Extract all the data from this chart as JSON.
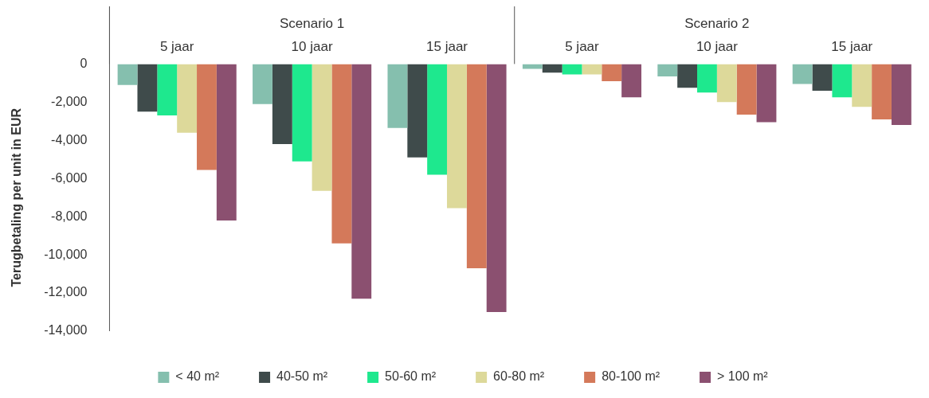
{
  "chart_data": {
    "type": "bar",
    "ylabel": "Terugbetaling per unit in EUR",
    "categories": [
      "5 jaar",
      "10 jaar",
      "15 jaar",
      "5 jaar",
      "10 jaar",
      "15 jaar"
    ],
    "annotations": [
      "Scenario 1",
      "Scenario 2"
    ],
    "series": [
      {
        "name": "< 40 m²",
        "color": "#85bfae",
        "values": [
          -1100,
          -2100,
          -3350,
          -250,
          -650,
          -1050
        ]
      },
      {
        "name": "40-50 m²",
        "color": "#3f4b4b",
        "values": [
          -2500,
          -4200,
          -4900,
          -450,
          -1250,
          -1400
        ]
      },
      {
        "name": "50-60 m²",
        "color": "#1ee88e",
        "values": [
          -2700,
          -5100,
          -5800,
          -550,
          -1500,
          -1750
        ]
      },
      {
        "name": "60-80 m²",
        "color": "#ddd99a",
        "values": [
          -3600,
          -6650,
          -7550,
          -550,
          -2000,
          -2250
        ]
      },
      {
        "name": "80-100 m²",
        "color": "#d4795a",
        "values": [
          -5550,
          -9400,
          -10700,
          -900,
          -2650,
          -2900
        ]
      },
      {
        "name": "> 100 m²",
        "color": "#8b5070",
        "values": [
          -8200,
          -12300,
          -13000,
          -1750,
          -3050,
          -3200
        ]
      }
    ],
    "ylim": [
      -14000,
      0
    ],
    "yticks": [
      0,
      {
        "value": -2000,
        "label": "-2,000"
      },
      {
        "value": -4000,
        "label": "-4,000"
      },
      {
        "value": -6000,
        "label": "-6,000"
      },
      {
        "value": -8000,
        "label": "-8,000"
      },
      {
        "value": -10000,
        "label": "-10,000"
      },
      {
        "value": -12000,
        "label": "-12,000"
      },
      {
        "value": -14000,
        "label": "-14,000"
      }
    ],
    "grid": false,
    "legend": "bottom"
  }
}
